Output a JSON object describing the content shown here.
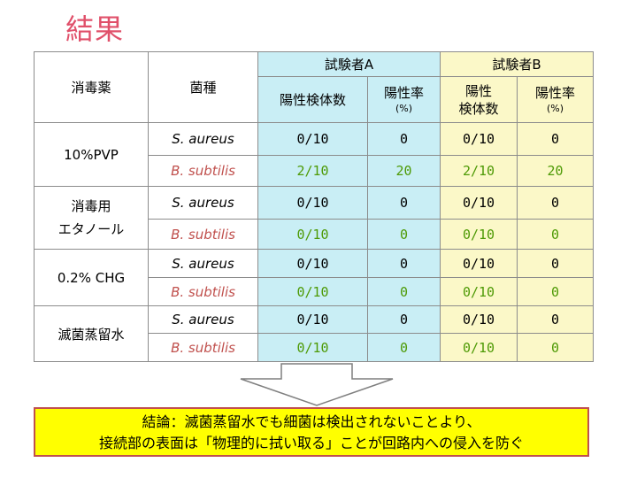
{
  "title": "結果",
  "table": {
    "header": {
      "disinfectant": "消毒薬",
      "species": "菌種",
      "groupA": "試験者A",
      "groupB": "試験者B",
      "a_count": "陽性検体数",
      "a_rate": "陽性率",
      "a_rate_unit": "(%)",
      "b_count_line1": "陽性",
      "b_count_line2": "検体数",
      "b_rate": "陽性率",
      "b_rate_unit": "(%)"
    },
    "groups": [
      {
        "name": "10%PVP",
        "rows": [
          {
            "species": "S. aureus",
            "a_count": "0/10",
            "a_rate": "0",
            "b_count": "0/10",
            "b_rate": "0"
          },
          {
            "species": "B. subtilis",
            "a_count": "2/10",
            "a_rate": "20",
            "b_count": "2/10",
            "b_rate": "20"
          }
        ]
      },
      {
        "name_line1": "消毒用",
        "name_line2": "エタノール",
        "rows": [
          {
            "species": "S. aureus",
            "a_count": "0/10",
            "a_rate": "0",
            "b_count": "0/10",
            "b_rate": "0"
          },
          {
            "species": "B. subtilis",
            "a_count": "0/10",
            "a_rate": "0",
            "b_count": "0/10",
            "b_rate": "0"
          }
        ]
      },
      {
        "name": "0.2% CHG",
        "rows": [
          {
            "species": "S. aureus",
            "a_count": "0/10",
            "a_rate": "0",
            "b_count": "0/10",
            "b_rate": "0"
          },
          {
            "species": "B. subtilis",
            "a_count": "0/10",
            "a_rate": "0",
            "b_count": "0/10",
            "b_rate": "0"
          }
        ]
      },
      {
        "name": "滅菌蒸留水",
        "rows": [
          {
            "species": "S. aureus",
            "a_count": "0/10",
            "a_rate": "0",
            "b_count": "0/10",
            "b_rate": "0"
          },
          {
            "species": "B. subtilis",
            "a_count": "0/10",
            "a_rate": "0",
            "b_count": "0/10",
            "b_rate": "0"
          }
        ]
      }
    ]
  },
  "conclusion": {
    "line1": "結論：滅菌蒸留水でも細菌は検出されないことより、",
    "line2": "接続部の表面は「物理的に拭い取る」ことが回路内への侵入を防ぐ"
  },
  "colors": {
    "title": "#e0506a",
    "groupA_bg": "#c9eef5",
    "groupB_bg": "#fbf8c8",
    "subtilis_text": "#c0504d",
    "subtilis_values": "#4e9a06",
    "conclusion_bg": "#ffff00",
    "conclusion_border": "#c0504d"
  }
}
